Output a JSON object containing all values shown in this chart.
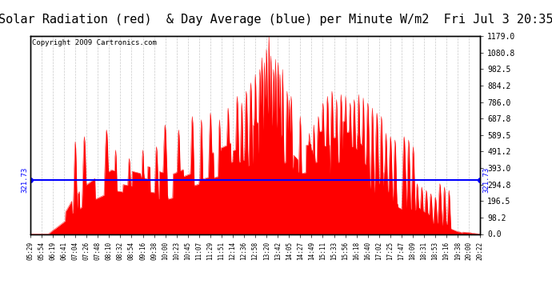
{
  "title": "Solar Radiation (red)  & Day Average (blue) per Minute W/m2  Fri Jul 3 20:35",
  "copyright": "Copyright 2009 Cartronics.com",
  "y_max": 1179.0,
  "y_min": 0.0,
  "y_ticks": [
    0.0,
    98.2,
    196.5,
    294.8,
    393.0,
    491.2,
    589.5,
    687.8,
    786.0,
    884.2,
    982.5,
    1080.8,
    1179.0
  ],
  "day_average": 321.73,
  "fill_color": "#ff0000",
  "avg_line_color": "#0000ff",
  "background_color": "#ffffff",
  "grid_color": "#bbbbbb",
  "title_fontsize": 11,
  "copyright_fontsize": 6.5,
  "x_labels": [
    "05:29",
    "05:54",
    "06:19",
    "06:41",
    "07:04",
    "07:26",
    "07:48",
    "08:10",
    "08:32",
    "08:54",
    "09:16",
    "09:38",
    "10:00",
    "10:23",
    "10:45",
    "11:07",
    "11:29",
    "11:51",
    "12:14",
    "12:36",
    "12:58",
    "13:20",
    "13:42",
    "14:05",
    "14:27",
    "14:49",
    "15:11",
    "15:33",
    "15:56",
    "16:18",
    "16:40",
    "17:02",
    "17:25",
    "17:47",
    "18:09",
    "18:31",
    "18:53",
    "19:16",
    "19:38",
    "20:00",
    "20:22"
  ]
}
